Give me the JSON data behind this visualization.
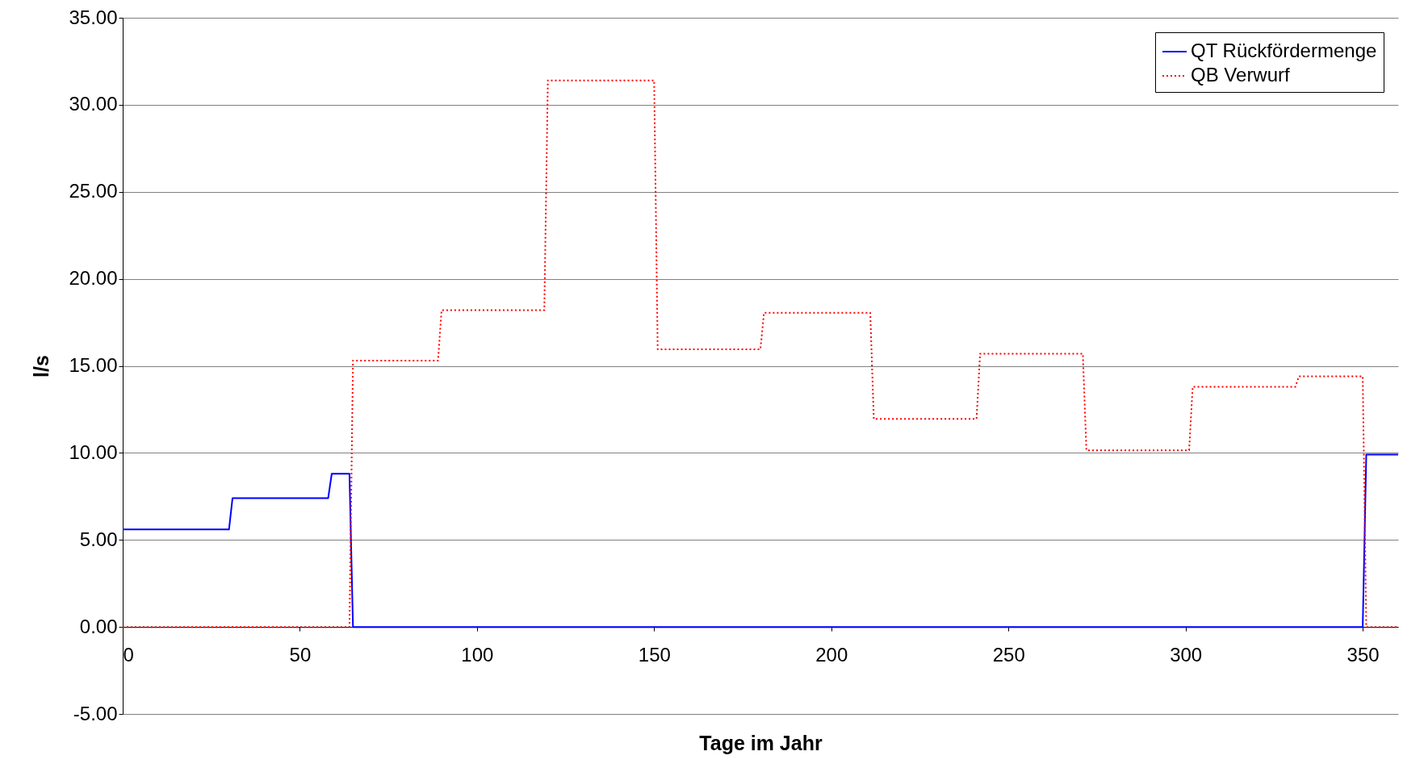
{
  "chart_data": {
    "type": "line",
    "xlabel": "Tage im Jahr",
    "ylabel": "l/s",
    "xlim": [
      0,
      360
    ],
    "ylim": [
      -5,
      35
    ],
    "xticks": [
      0,
      50,
      100,
      150,
      200,
      250,
      300,
      350
    ],
    "yticks": [
      {
        "value": -5,
        "label": "-5.00"
      },
      {
        "value": 0,
        "label": "0.00"
      },
      {
        "value": 5,
        "label": "5.00"
      },
      {
        "value": 10,
        "label": "10.00"
      },
      {
        "value": 15,
        "label": "15.00"
      },
      {
        "value": 20,
        "label": "20.00"
      },
      {
        "value": 25,
        "label": "25.00"
      },
      {
        "value": 30,
        "label": "30.00"
      },
      {
        "value": 35,
        "label": "35.00"
      }
    ],
    "grid": "y",
    "legend": "top right",
    "marker": "none",
    "series": [
      {
        "name": "QT Rückfördermenge",
        "color": "#0000ff",
        "line_style": "solid",
        "x": [
          0,
          30,
          31,
          58,
          59,
          64,
          65,
          350,
          351,
          360
        ],
        "values": [
          5.6,
          5.6,
          7.4,
          7.4,
          8.8,
          8.8,
          0,
          0,
          9.9,
          9.9
        ]
      },
      {
        "name": "QB Verwurf",
        "color": "#ff0000",
        "line_style": "dotted",
        "x": [
          0,
          64,
          65,
          89,
          90,
          119,
          120,
          150,
          151,
          180,
          181,
          211,
          212,
          241,
          242,
          271,
          272,
          301,
          302,
          331,
          332,
          350,
          351,
          360
        ],
        "values": [
          0,
          0,
          15.3,
          15.3,
          18.2,
          18.2,
          31.4,
          31.4,
          15.95,
          15.95,
          18.05,
          18.05,
          11.95,
          11.95,
          15.7,
          15.7,
          10.15,
          10.15,
          13.8,
          13.8,
          14.4,
          14.4,
          0,
          0
        ]
      }
    ]
  }
}
